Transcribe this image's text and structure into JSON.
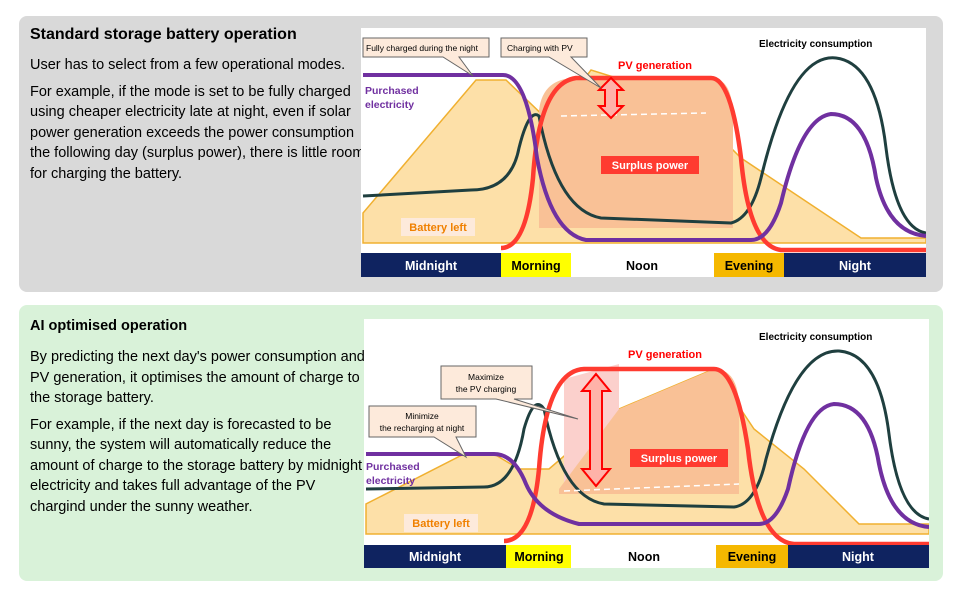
{
  "standard": {
    "title": "Standard storage battery operation",
    "paragraphs": [
      "User has to select from a few operational modes.",
      "For example, if the mode is set to be fully charged using cheaper electricity late at night, even if solar power generation exceeds the power consumption the following day (surplus power), there is little room for charging the battery."
    ],
    "chart": {
      "callout_1": "Fully charged during the night",
      "callout_2": "Charging with PV",
      "pv_generation": "PV generation",
      "electricity_consumption": "Electricity consumption",
      "purchased_line1": "Purchased",
      "purchased_line2": "electricity",
      "surplus_power": "Surplus power",
      "battery_left": "Battery left",
      "time_bands": [
        "Midnight",
        "Morning",
        "Noon",
        "Evening",
        "Night"
      ]
    }
  },
  "ai": {
    "title": "AI optimised operation",
    "paragraphs": [
      "By predicting the next day's power consumption and PV generation, it optimises the amount of charge to the storage battery.",
      "For example, if the next day is forecasted to be sunny, the system will automatically reduce the amount of charge to the storage battery by midnight electricity and takes full advantage of the PV chargind under the sunny weather."
    ],
    "chart": {
      "callout_1_line1": "Maximize",
      "callout_1_line2": "the PV charging",
      "callout_2_line1": "Minimize",
      "callout_2_line2": "the recharging at night",
      "pv_generation": "PV generation",
      "electricity_consumption": "Electricity consumption",
      "purchased_line1": "Purchased",
      "purchased_line2": "electricity",
      "surplus_power": "Surplus power",
      "battery_left": "Battery left",
      "time_bands": [
        "Midnight",
        "Morning",
        "Noon",
        "Evening",
        "Night"
      ]
    }
  },
  "colors": {
    "standard_panel": "#d9d9d9",
    "ai_panel": "#d9f2d9",
    "pv_line": "#ff3b30",
    "consumption_line": "#1f3f3f",
    "purchased_line": "#7030a0",
    "battery_fill": "#fde0a8",
    "battery_edge": "#f0b030",
    "surplus_fill": "#f9c196",
    "night_band": "#0f2360",
    "morning_band": "#ffff00",
    "evening_band": "#f5b800"
  }
}
